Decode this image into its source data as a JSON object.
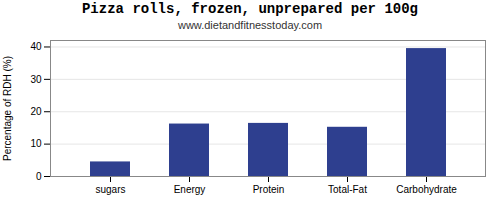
{
  "chart_data": {
    "type": "bar",
    "title": "Pizza rolls, frozen, unprepared per 100g",
    "subtitle": "www.dietandfitnesstoday.com",
    "categories": [
      "sugars",
      "Energy",
      "Protein",
      "Total-Fat",
      "Carbohydrate"
    ],
    "values": [
      4.5,
      16.2,
      16.4,
      15.2,
      39.5
    ],
    "color": "#2e3f8f",
    "ylabel": "Percentage of RDH (%)",
    "ylim": [
      0,
      42
    ],
    "yticks": [
      0,
      10,
      20,
      30,
      40
    ],
    "grid": true
  }
}
